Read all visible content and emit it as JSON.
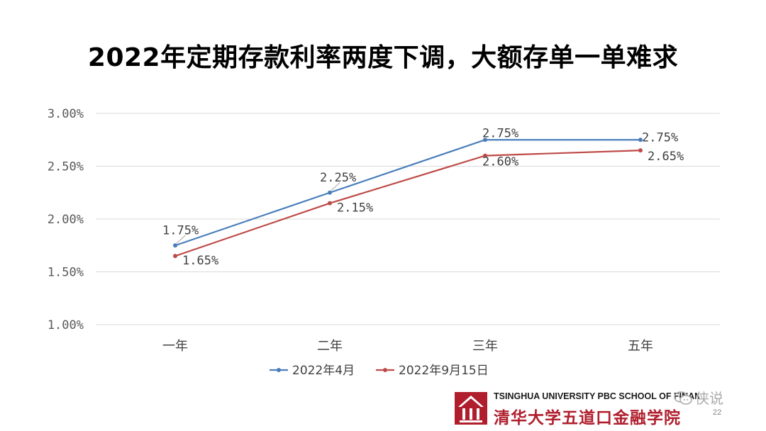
{
  "title": "2022年定期存款利率两度下调，大额存单一单难求",
  "chart_data": {
    "type": "line",
    "categories": [
      "一年",
      "二年",
      "三年",
      "五年"
    ],
    "series": [
      {
        "name": "2022年4月",
        "values": [
          1.75,
          2.25,
          2.75,
          2.75
        ],
        "color": "#4A7EBB",
        "labels": [
          "1.75%",
          "2.25%",
          "2.75%",
          "2.75%"
        ]
      },
      {
        "name": "2022年9月15日",
        "values": [
          1.65,
          2.15,
          2.6,
          2.65
        ],
        "color": "#BE4B48",
        "labels": [
          "1.65%",
          "2.15%",
          "2.60%",
          "2.65%"
        ]
      }
    ],
    "ylim": [
      1.0,
      3.0
    ],
    "yticks": [
      1.0,
      1.5,
      2.0,
      2.5,
      3.0
    ],
    "ytick_labels": [
      "1.00%",
      "1.50%",
      "2.00%",
      "2.50%",
      "3.00%"
    ],
    "grid": true,
    "legend_position": "bottom"
  },
  "footer": {
    "logo_en": "TSINGHUA UNIVERSITY PBC SCHOOL OF FINANCE",
    "logo_cn": "清华大学五道口金融学院",
    "watermark": "侠说",
    "page_number": "22"
  }
}
